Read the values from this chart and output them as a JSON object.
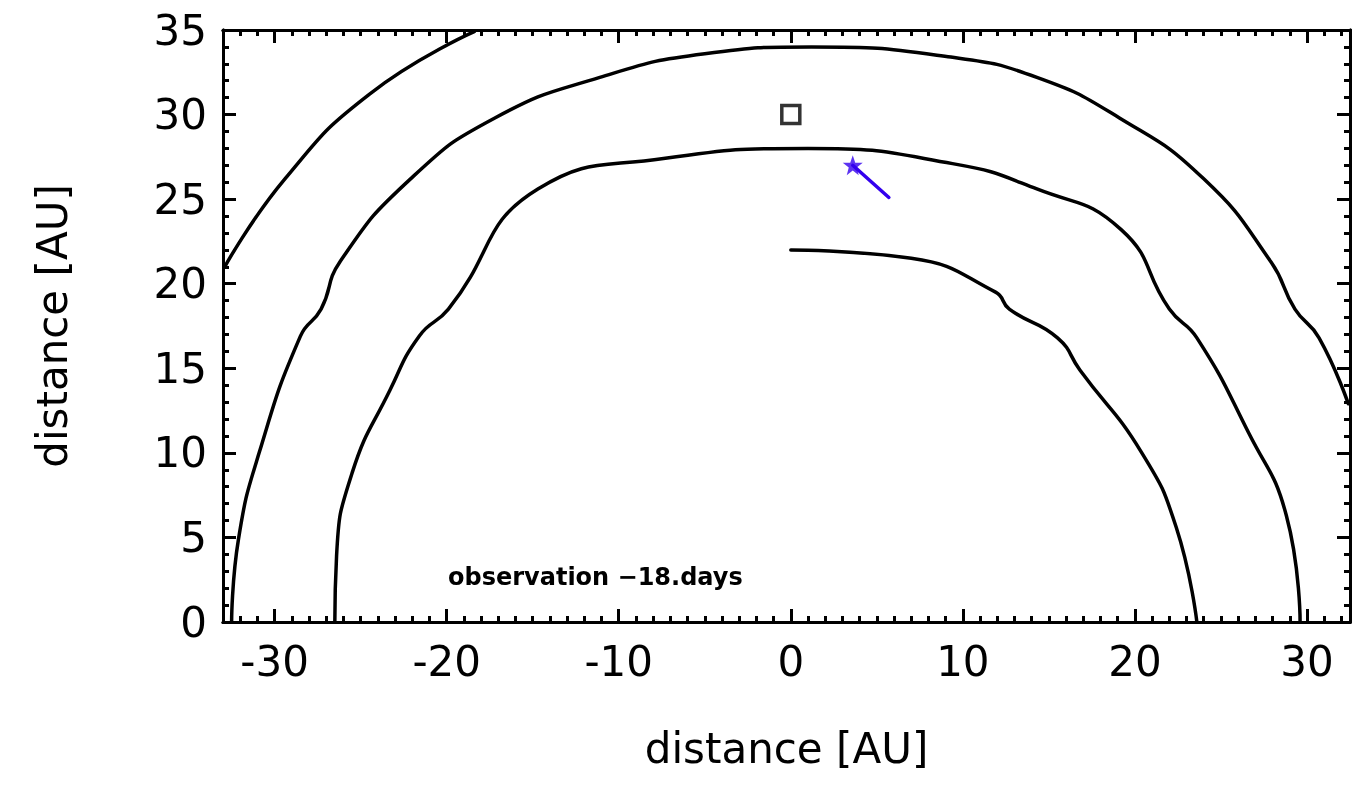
{
  "chart_data": {
    "type": "line",
    "xlabel": "distance [AU]",
    "ylabel": "distance [AU]",
    "xlim": [
      -33,
      32.5
    ],
    "xticks": [
      -30,
      -20,
      -10,
      0,
      10,
      20,
      30
    ],
    "ylim": [
      0,
      35
    ],
    "yticks": [
      0,
      5,
      10,
      15,
      20,
      25,
      30,
      35
    ],
    "grid": false,
    "marker": "none",
    "line_style": "solid",
    "annotations": [
      "observation −18.days"
    ],
    "series": [
      {
        "color": "#000000",
        "x": [
          -32.9,
          -29.4,
          -24.5,
          -18.4
        ],
        "values": [
          21.0,
          26.2,
          31.2,
          34.9
        ]
      },
      {
        "color": "#000000",
        "x": [
          -32.5,
          -32.1,
          -30.9,
          -28.5,
          -27.3,
          -26.2,
          -22.1,
          -17.2,
          -11.1,
          -5.0,
          1.2,
          9.3,
          14.3,
          19.1,
          24.0,
          27.9,
          29.3,
          30.7,
          32.4
        ],
        "values": [
          0,
          4.9,
          10,
          16.9,
          18.5,
          21.3,
          26.2,
          29.8,
          32.2,
          33.6,
          34.0,
          33.4,
          32.2,
          29.8,
          26.2,
          21.3,
          18.5,
          16.8,
          12.9
        ]
      },
      {
        "color": "#000000",
        "x": [
          -26.5,
          -26.4,
          -25.5,
          -23.3,
          -21.6,
          -19.9,
          -14.7,
          -7.4,
          1.0,
          9.4,
          14.3,
          19.2,
          22.0,
          23.6,
          26.6,
          28.8,
          29.6
        ],
        "values": [
          0,
          3.9,
          8.8,
          13.7,
          16.9,
          18.5,
          25.6,
          27.4,
          28.0,
          27.1,
          25.6,
          23.2,
          18.5,
          16.8,
          11.2,
          6.3,
          0
        ]
      },
      {
        "color": "#000000",
        "x": [
          0,
          7.0,
          11.9,
          12.7,
          15.5,
          16.8,
          20.4,
          22.4,
          23.6
        ],
        "values": [
          22.0,
          21.5,
          19.5,
          18.5,
          16.8,
          14.9,
          10.0,
          5.6,
          0
        ]
      },
      {
        "color": "#3300ee",
        "x": [
          3.6,
          5.7
        ],
        "values": [
          27.0,
          25.1
        ]
      },
      {
        "type": "scatter",
        "marker": "square",
        "color": "#000000",
        "x": [
          0
        ],
        "values": [
          30
        ]
      },
      {
        "type": "scatter",
        "marker": "star",
        "color": "#3300ee",
        "x": [
          3.6
        ],
        "values": [
          27.0
        ]
      }
    ]
  }
}
